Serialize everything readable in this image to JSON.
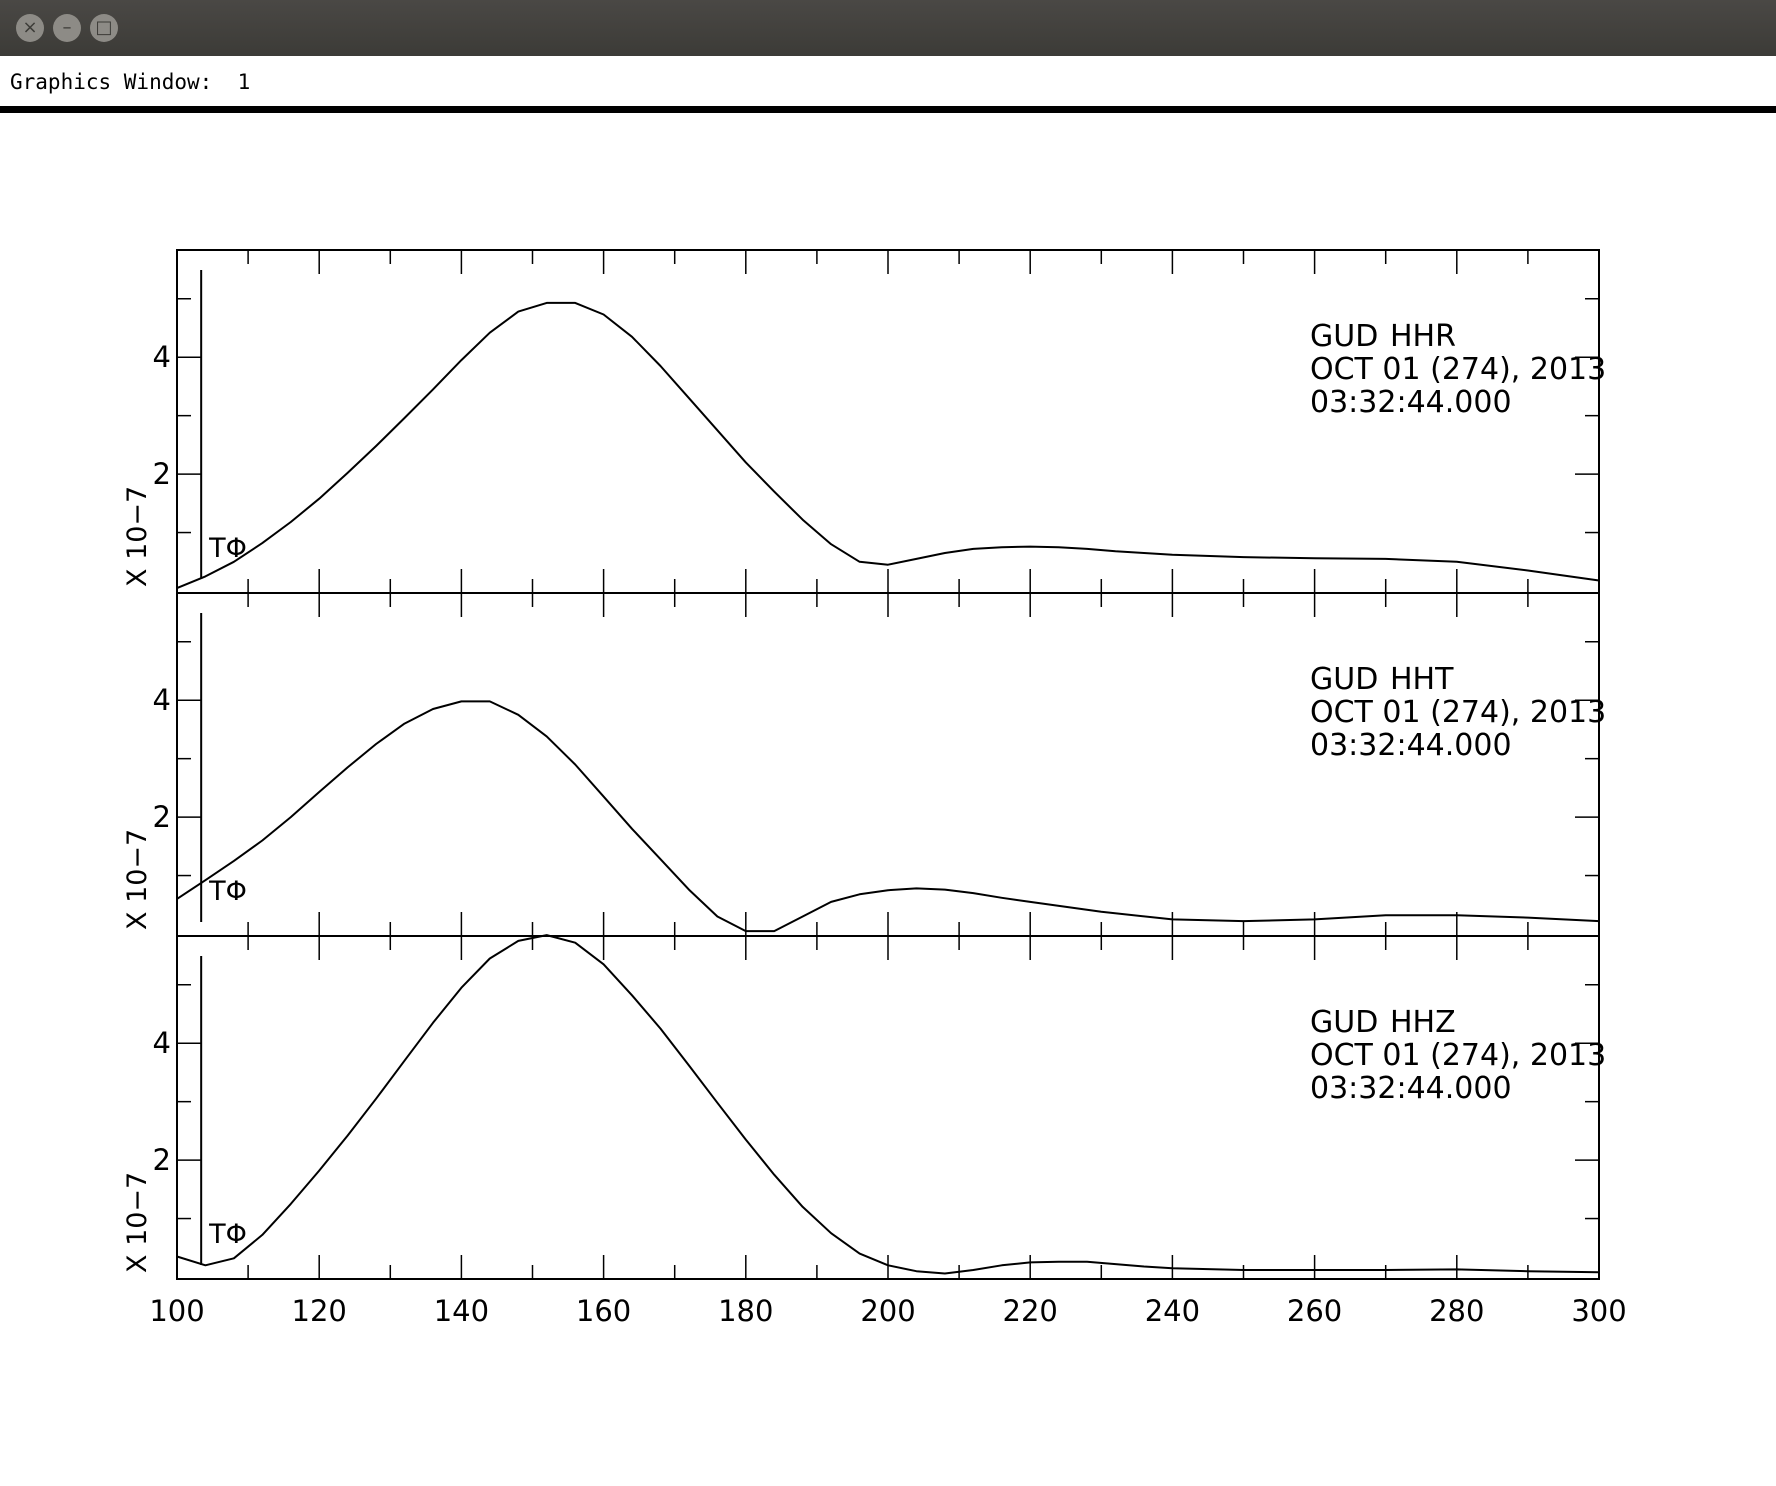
{
  "window": {
    "close_icon": "×",
    "minimize_icon": "–",
    "maximize_icon": "□"
  },
  "status": {
    "label": "Graphics Window:",
    "number": "1"
  },
  "chart_data": {
    "type": "line",
    "xlim": [
      100,
      300
    ],
    "x_ticks": [
      "100",
      "120",
      "140",
      "160",
      "180",
      "200",
      "220",
      "240",
      "260",
      "280",
      "300"
    ],
    "ylim": [
      0,
      5.8
    ],
    "y_tick_labels": [
      "2",
      "4"
    ],
    "y_multiplier_label": "X 10−7",
    "marker": {
      "label": "TΦ",
      "x": 103.4
    },
    "panels": [
      {
        "station": "GUD",
        "channel": "HHR",
        "date": "OCT 01 (274), 2013",
        "time": "03:32:44.000",
        "x": [
          100,
          104,
          108,
          112,
          116,
          120,
          124,
          128,
          132,
          136,
          140,
          144,
          148,
          152,
          156,
          160,
          164,
          168,
          172,
          176,
          180,
          184,
          188,
          192,
          196,
          200,
          204,
          208,
          212,
          216,
          220,
          224,
          228,
          232,
          236,
          240,
          250,
          260,
          270,
          280,
          290,
          300
        ],
        "y": [
          0.05,
          0.25,
          0.5,
          0.82,
          1.18,
          1.58,
          2.02,
          2.48,
          2.96,
          3.45,
          3.95,
          4.42,
          4.78,
          4.93,
          4.93,
          4.73,
          4.35,
          3.85,
          3.3,
          2.75,
          2.2,
          1.7,
          1.22,
          0.8,
          0.5,
          0.45,
          0.55,
          0.65,
          0.72,
          0.75,
          0.76,
          0.75,
          0.72,
          0.68,
          0.65,
          0.62,
          0.58,
          0.56,
          0.55,
          0.5,
          0.35,
          0.18
        ]
      },
      {
        "station": "GUD",
        "channel": "HHT",
        "date": "OCT 01 (274), 2013",
        "time": "03:32:44.000",
        "x": [
          100,
          104,
          108,
          112,
          116,
          120,
          124,
          128,
          132,
          136,
          140,
          144,
          148,
          152,
          156,
          160,
          164,
          168,
          172,
          176,
          180,
          184,
          188,
          192,
          196,
          200,
          204,
          208,
          212,
          216,
          220,
          230,
          240,
          250,
          260,
          270,
          280,
          290,
          300
        ],
        "y": [
          0.6,
          0.92,
          1.25,
          1.6,
          2.0,
          2.43,
          2.85,
          3.25,
          3.6,
          3.85,
          3.98,
          3.98,
          3.75,
          3.38,
          2.9,
          2.35,
          1.8,
          1.28,
          0.76,
          0.3,
          0.05,
          0.05,
          0.3,
          0.55,
          0.68,
          0.75,
          0.78,
          0.76,
          0.7,
          0.62,
          0.55,
          0.38,
          0.25,
          0.22,
          0.25,
          0.32,
          0.32,
          0.28,
          0.22
        ]
      },
      {
        "station": "GUD",
        "channel": "HHZ",
        "date": "OCT 01 (274), 2013",
        "time": "03:32:44.000",
        "x": [
          100,
          104,
          108,
          112,
          116,
          120,
          124,
          128,
          132,
          136,
          140,
          144,
          148,
          152,
          156,
          160,
          164,
          168,
          172,
          176,
          180,
          184,
          188,
          192,
          196,
          200,
          204,
          208,
          212,
          216,
          220,
          224,
          228,
          232,
          236,
          240,
          250,
          260,
          270,
          280,
          290,
          300
        ],
        "y": [
          0.35,
          0.2,
          0.32,
          0.72,
          1.25,
          1.82,
          2.42,
          3.05,
          3.7,
          4.35,
          4.95,
          5.45,
          5.75,
          5.85,
          5.72,
          5.35,
          4.82,
          4.25,
          3.62,
          2.98,
          2.35,
          1.75,
          1.2,
          0.75,
          0.4,
          0.2,
          0.1,
          0.06,
          0.12,
          0.2,
          0.25,
          0.26,
          0.26,
          0.22,
          0.18,
          0.15,
          0.12,
          0.12,
          0.12,
          0.13,
          0.1,
          0.08
        ]
      }
    ]
  }
}
